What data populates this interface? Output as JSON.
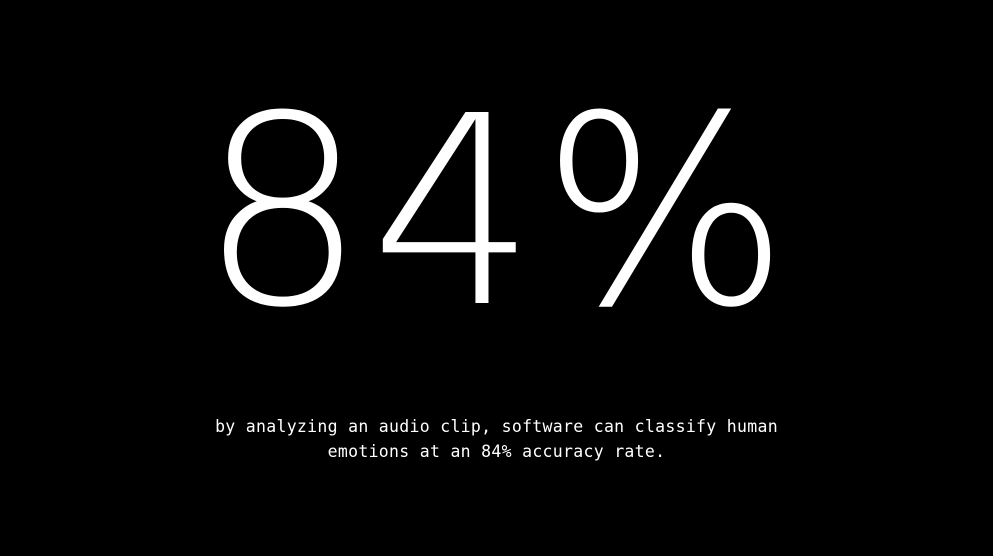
{
  "slide": {
    "stat": "84%",
    "caption_line_1": "by analyzing an audio clip, software can classify human",
    "caption_line_2": "emotions at an 84% accuracy rate."
  },
  "colors": {
    "background": "#000000",
    "text": "#ffffff"
  }
}
